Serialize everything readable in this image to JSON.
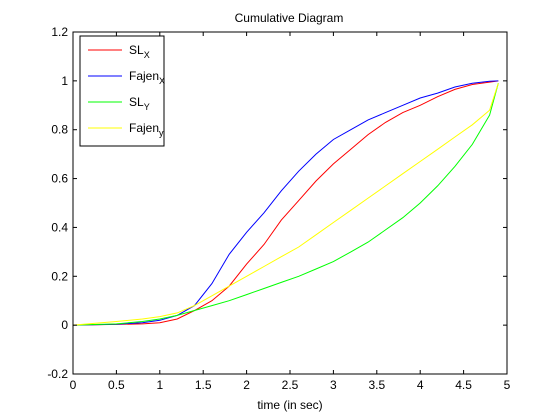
{
  "chart_data": {
    "type": "line",
    "title": "Cumulative Diagram",
    "xlabel": "time (in sec)",
    "ylabel": "",
    "xlim": [
      0,
      5
    ],
    "ylim": [
      -0.2,
      1.2
    ],
    "xticks": [
      0,
      0.5,
      1,
      1.5,
      2,
      2.5,
      3,
      3.5,
      4,
      4.5,
      5
    ],
    "xtick_labels": [
      "0",
      "0.5",
      "1",
      "1.5",
      "2",
      "2.5",
      "3",
      "3.5",
      "4",
      "4.5",
      "5"
    ],
    "yticks": [
      -0.2,
      0,
      0.2,
      0.4,
      0.6,
      0.8,
      1,
      1.2
    ],
    "ytick_labels": [
      "-0.2",
      "0",
      "0.2",
      "0.4",
      "0.6",
      "0.8",
      "1",
      "1.2"
    ],
    "grid": false,
    "legend_position": "top-left",
    "series": [
      {
        "name": "SL",
        "subscript": "X",
        "color": "#ff0000",
        "x": [
          0,
          0.5,
          0.8,
          1.0,
          1.2,
          1.4,
          1.6,
          1.8,
          2.0,
          2.2,
          2.4,
          2.6,
          2.8,
          3.0,
          3.2,
          3.4,
          3.6,
          3.8,
          4.0,
          4.2,
          4.4,
          4.6,
          4.8,
          4.9
        ],
        "y": [
          0,
          0.003,
          0.005,
          0.01,
          0.025,
          0.06,
          0.1,
          0.16,
          0.25,
          0.33,
          0.43,
          0.51,
          0.59,
          0.66,
          0.72,
          0.78,
          0.83,
          0.87,
          0.9,
          0.935,
          0.965,
          0.985,
          0.995,
          1.0
        ]
      },
      {
        "name": "Fajen",
        "subscript": "X",
        "color": "#0000ff",
        "x": [
          0,
          0.5,
          0.8,
          1.0,
          1.2,
          1.4,
          1.6,
          1.8,
          2.0,
          2.2,
          2.4,
          2.6,
          2.8,
          3.0,
          3.2,
          3.4,
          3.6,
          3.8,
          4.0,
          4.2,
          4.4,
          4.6,
          4.8,
          4.9
        ],
        "y": [
          0,
          0.004,
          0.01,
          0.02,
          0.04,
          0.08,
          0.17,
          0.29,
          0.38,
          0.46,
          0.55,
          0.63,
          0.7,
          0.76,
          0.8,
          0.84,
          0.87,
          0.9,
          0.93,
          0.95,
          0.975,
          0.99,
          0.998,
          1.0
        ]
      },
      {
        "name": "SL",
        "subscript": "Y",
        "color": "#00ff00",
        "x": [
          0,
          0.5,
          0.8,
          1.0,
          1.2,
          1.4,
          1.6,
          1.8,
          2.0,
          2.2,
          2.4,
          2.6,
          2.8,
          3.0,
          3.2,
          3.4,
          3.6,
          3.8,
          4.0,
          4.2,
          4.4,
          4.6,
          4.8,
          4.9
        ],
        "y": [
          0,
          0.005,
          0.015,
          0.025,
          0.04,
          0.06,
          0.08,
          0.1,
          0.125,
          0.15,
          0.175,
          0.2,
          0.23,
          0.26,
          0.3,
          0.34,
          0.39,
          0.44,
          0.5,
          0.57,
          0.65,
          0.74,
          0.86,
          0.99
        ]
      },
      {
        "name": "Fajen",
        "subscript": "y",
        "color": "#ffff00",
        "x": [
          0,
          0.5,
          0.8,
          1.0,
          1.2,
          1.4,
          1.6,
          1.8,
          2.0,
          2.2,
          2.4,
          2.6,
          2.8,
          3.0,
          3.2,
          3.4,
          3.6,
          3.8,
          4.0,
          4.2,
          4.4,
          4.6,
          4.8,
          4.9
        ],
        "y": [
          0,
          0.015,
          0.025,
          0.035,
          0.05,
          0.08,
          0.12,
          0.16,
          0.2,
          0.24,
          0.28,
          0.32,
          0.37,
          0.42,
          0.47,
          0.52,
          0.57,
          0.62,
          0.67,
          0.72,
          0.77,
          0.82,
          0.88,
          0.99
        ]
      }
    ]
  }
}
